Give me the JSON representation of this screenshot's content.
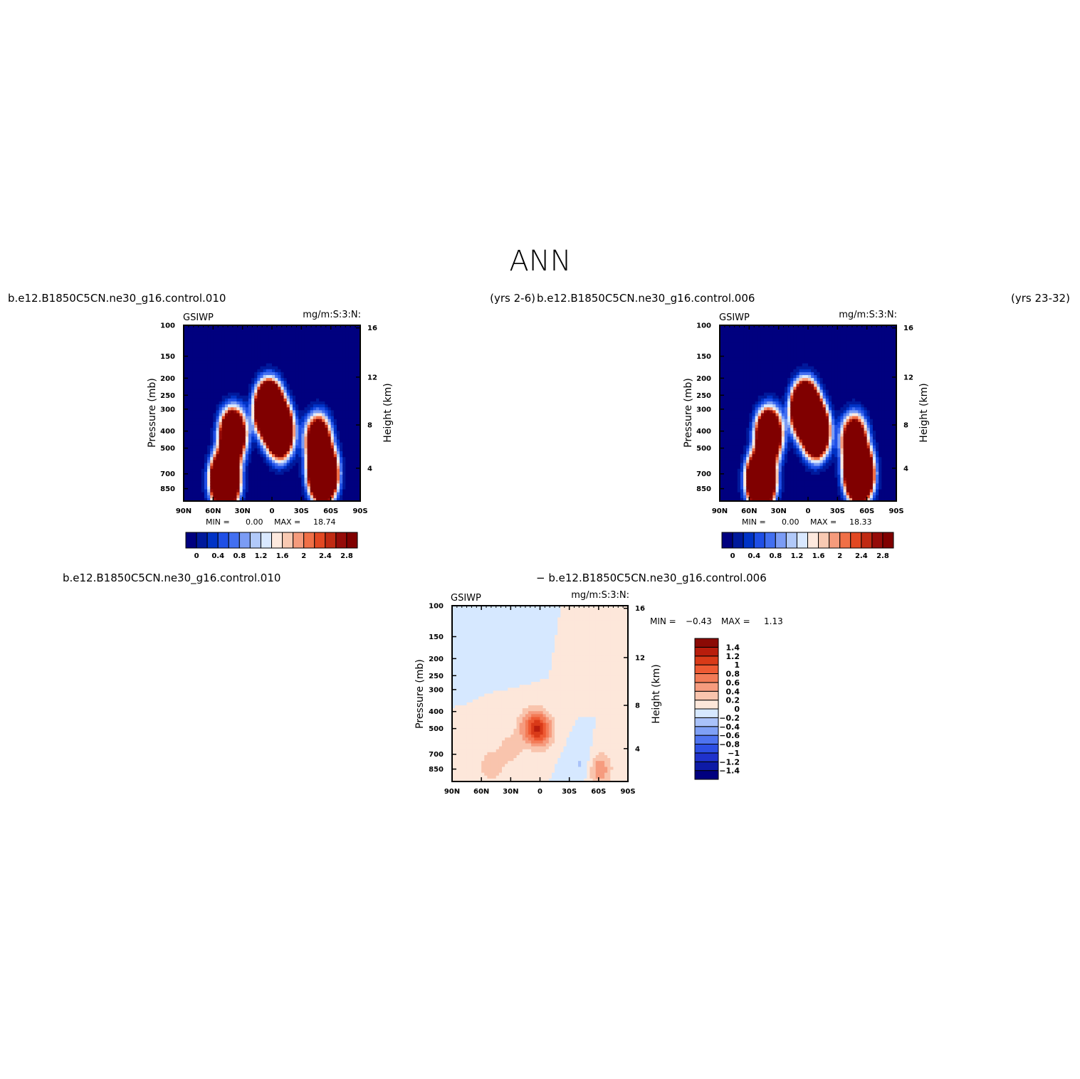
{
  "page_title": "ANN",
  "colors": {
    "cb1": [
      "#00007f",
      "#00199b",
      "#0033c6",
      "#1f4fe6",
      "#426ff0",
      "#7b9cf5",
      "#b1c9f9",
      "#d9e8ff",
      "#fde9de",
      "#f8c9b2",
      "#f59b7c",
      "#f07047",
      "#e24822",
      "#c02a12",
      "#950b08",
      "#800000"
    ],
    "diff": [
      "#00007f",
      "#0d1aa6",
      "#1f32cc",
      "#2d4fe4",
      "#4e73f0",
      "#7fa0f6",
      "#a9c2fa",
      "#d6e8ff",
      "#fde7da",
      "#f9c4ad",
      "#f69b7e",
      "#f37b57",
      "#ee5a33",
      "#d93a18",
      "#b81d0c",
      "#8b0a05"
    ]
  },
  "chart_data": [
    {
      "type": "contour",
      "name": "panel-1",
      "title_left": "b.e12.B1850C5CN.ne30_g16.control.010",
      "title_right": "(yrs 2-6)",
      "subtitle_left": "GSIWP",
      "subtitle_right": "mg/m:S:3:N:",
      "ylabel": "Pressure (mb)",
      "y2label": "Height (km)",
      "x_ticks": [
        "90N",
        "60N",
        "30N",
        "0",
        "30S",
        "60S",
        "90S"
      ],
      "y_ticks": [
        "100",
        "150",
        "200",
        "250",
        "300",
        "400",
        "500",
        "700",
        "850"
      ],
      "y2_ticks": [
        "16",
        "12",
        "8",
        "4"
      ],
      "stats": {
        "min_label": "MIN =",
        "min": "0.00",
        "max_label": "MAX =",
        "max": "18.74"
      },
      "colorbar_labels": [
        "0",
        "0.4",
        "0.8",
        "1.2",
        "1.6",
        "2",
        "2.4",
        "2.8"
      ],
      "field": {
        "background": 0,
        "blobs": [
          {
            "lat": -52,
            "p": 700,
            "v": 17
          },
          {
            "lat": 48,
            "p": 760,
            "v": 17
          },
          {
            "lat": 3,
            "p": 300,
            "v": 16
          },
          {
            "lat": -8,
            "p": 400,
            "v": 12
          },
          {
            "lat": -47,
            "p": 450,
            "v": 7
          },
          {
            "lat": 40,
            "p": 420,
            "v": 10
          }
        ]
      }
    },
    {
      "type": "contour",
      "name": "panel-2",
      "title_left": "b.e12.B1850C5CN.ne30_g16.control.006",
      "title_right": "(yrs 23-32)",
      "subtitle_left": "GSIWP",
      "subtitle_right": "mg/m:S:3:N:",
      "ylabel": "Pressure (mb)",
      "y2label": "Height (km)",
      "x_ticks": [
        "90N",
        "60N",
        "30N",
        "0",
        "30S",
        "60S",
        "90S"
      ],
      "y_ticks": [
        "100",
        "150",
        "200",
        "250",
        "300",
        "400",
        "500",
        "700",
        "850"
      ],
      "y2_ticks": [
        "16",
        "12",
        "8",
        "4"
      ],
      "stats": {
        "min_label": "MIN =",
        "min": "0.00",
        "max_label": "MAX =",
        "max": "18.33"
      },
      "colorbar_labels": [
        "0",
        "0.4",
        "0.8",
        "1.2",
        "1.6",
        "2",
        "2.4",
        "2.8"
      ],
      "field": {
        "background": 0,
        "blobs": [
          {
            "lat": -52,
            "p": 700,
            "v": 17
          },
          {
            "lat": 48,
            "p": 760,
            "v": 17
          },
          {
            "lat": 3,
            "p": 300,
            "v": 15
          },
          {
            "lat": -8,
            "p": 400,
            "v": 12
          },
          {
            "lat": -47,
            "p": 450,
            "v": 7
          },
          {
            "lat": 40,
            "p": 420,
            "v": 10
          }
        ]
      }
    },
    {
      "type": "contour",
      "name": "panel-diff",
      "title_left": "b.e12.B1850C5CN.ne30_g16.control.010",
      "title_right": "− b.e12.B1850C5CN.ne30_g16.control.006",
      "subtitle_left": "GSIWP",
      "subtitle_right": "mg/m:S:3:N:",
      "ylabel": "Pressure (mb)",
      "y2label": "Height (km)",
      "x_ticks": [
        "90N",
        "60N",
        "30N",
        "0",
        "30S",
        "60S",
        "90S"
      ],
      "y_ticks": [
        "100",
        "150",
        "200",
        "250",
        "300",
        "400",
        "500",
        "700",
        "850"
      ],
      "y2_ticks": [
        "16",
        "12",
        "8",
        "4"
      ],
      "stats": {
        "min_label": "MIN =",
        "min": "−0.43",
        "max_label": "MAX =",
        "max": "1.13"
      },
      "colorbar_labels": [
        "1.4",
        "1.2",
        "1",
        "0.8",
        "0.6",
        "0.4",
        "0.2",
        "0",
        "−0.2",
        "−0.4",
        "−0.6",
        "−0.8",
        "−1",
        "−1.2",
        "−1.4"
      ],
      "field": {
        "background": 0,
        "blobs": [
          {
            "lat": 0,
            "p": 510,
            "v": 0.95
          },
          {
            "lat": 10,
            "p": 480,
            "v": 0.5
          },
          {
            "lat": 30,
            "p": 650,
            "v": 0.3
          },
          {
            "lat": 50,
            "p": 820,
            "v": 0.35
          },
          {
            "lat": -60,
            "p": 850,
            "v": 0.6
          },
          {
            "lat": -45,
            "p": 230,
            "v": 0.12
          },
          {
            "lat": 70,
            "p": 150,
            "v": -0.08
          },
          {
            "lat": 20,
            "p": 180,
            "v": -0.1
          },
          {
            "lat": -45,
            "p": 800,
            "v": -0.3
          }
        ]
      }
    }
  ]
}
